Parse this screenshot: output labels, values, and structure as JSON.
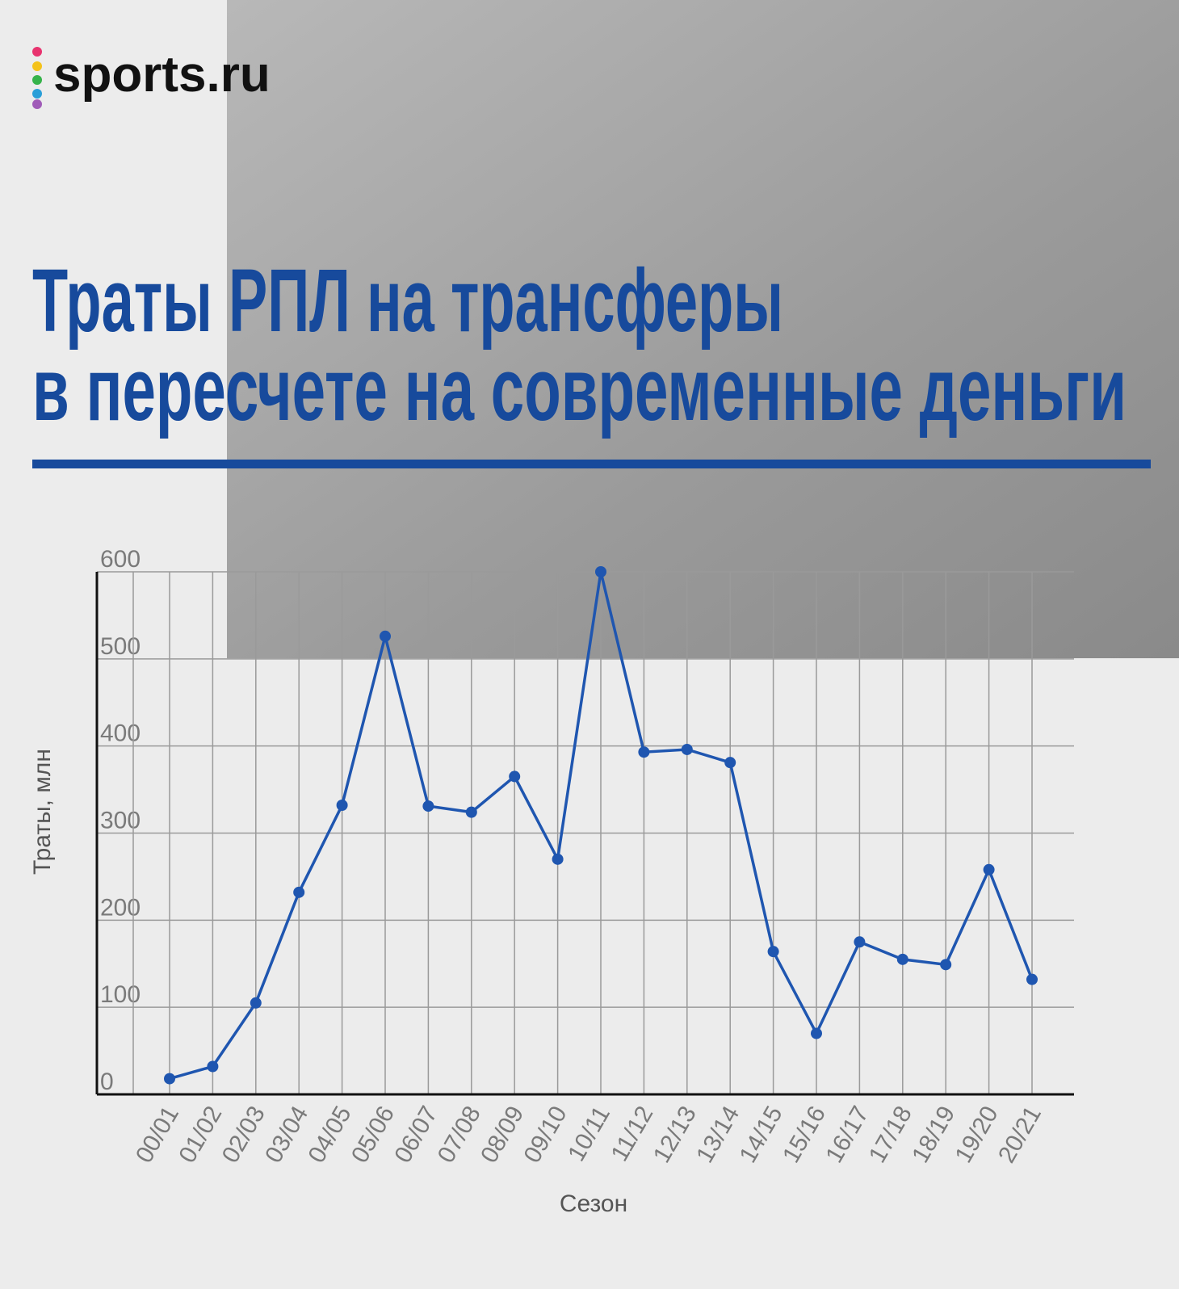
{
  "header": {
    "logo": "sports.ru",
    "title": [
      "Траты РПЛ на трансферы",
      "в пересчете на современные деньги"
    ]
  },
  "chart_data": {
    "type": "line",
    "x_label": "Сезон",
    "y_label": "Траты, млн",
    "categories": [
      "00/01",
      "01/02",
      "02/03",
      "03/04",
      "04/05",
      "05/06",
      "06/07",
      "07/08",
      "08/09",
      "09/10",
      "10/11",
      "11/12",
      "12/13",
      "13/14",
      "14/15",
      "15/16",
      "16/17",
      "17/18",
      "18/19",
      "19/20",
      "20/21"
    ],
    "series": [
      {
        "color": "#1f56b0",
        "values": [
          18,
          32,
          105,
          232,
          332,
          526,
          331,
          324,
          365,
          270,
          600,
          393,
          396,
          381,
          164,
          70,
          175,
          155,
          149,
          258,
          132
        ]
      }
    ],
    "ylim": [
      0,
      600
    ],
    "yticks": [
      0,
      100,
      200,
      300,
      400,
      500,
      600
    ],
    "grid": true
  }
}
